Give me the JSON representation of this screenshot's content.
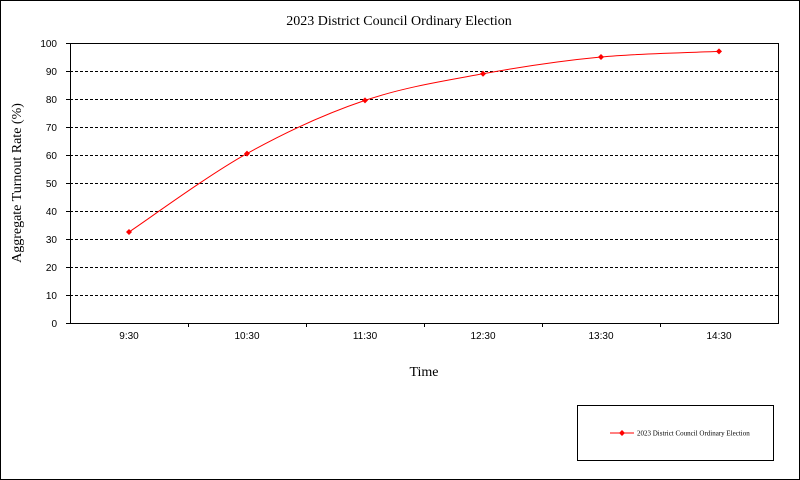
{
  "chart_data": {
    "type": "line",
    "title": "2023 District Council Ordinary Election",
    "xlabel": "Time",
    "ylabel": "Aggregate  Turnout Rate  (%)",
    "categories": [
      "9:30",
      "10:30",
      "11:30",
      "12:30",
      "13:30",
      "14:30"
    ],
    "ylim": [
      0,
      100
    ],
    "yticks": [
      0,
      10,
      20,
      30,
      40,
      50,
      60,
      70,
      80,
      90,
      100
    ],
    "grid": "horizontal dashed",
    "legend_position": "bottom-right",
    "series": [
      {
        "name": "2023 District Council Ordinary Election",
        "color": "#ff0000",
        "marker": "diamond",
        "values": [
          32.5,
          60.5,
          79.5,
          89,
          95,
          97
        ]
      }
    ]
  }
}
